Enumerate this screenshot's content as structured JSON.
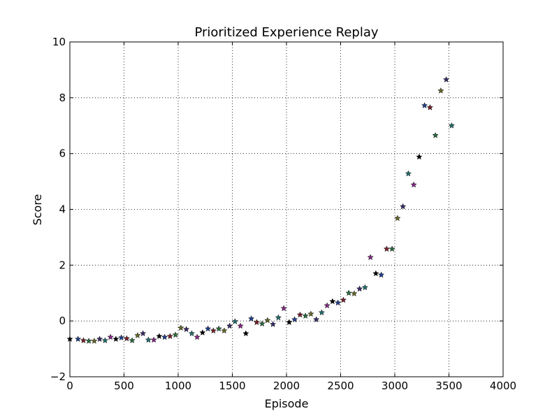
{
  "chart_data": {
    "type": "scatter",
    "title": "Prioritized Experience Replay",
    "xlabel": "Episode",
    "ylabel": "Score",
    "xlim": [
      0,
      4000
    ],
    "ylim": [
      -2,
      10
    ],
    "xticks": [
      0,
      500,
      1000,
      1500,
      2000,
      2500,
      3000,
      3500,
      4000
    ],
    "yticks": [
      -2,
      0,
      2,
      4,
      6,
      8,
      10
    ],
    "x_tick_labels": [
      "0",
      "500",
      "1000",
      "1500",
      "2000",
      "2500",
      "3000",
      "3500",
      "4000"
    ],
    "y_tick_labels": [
      "−2",
      "0",
      "2",
      "4",
      "6",
      "8",
      "10"
    ],
    "grid": true,
    "marker": "star",
    "marker_colors": [
      "#000000",
      "#1f3f8f",
      "#7a1f2a",
      "#2a6f3f",
      "#6a6a2a",
      "#3a2a6a",
      "#1f6f6f",
      "#8a2a8a"
    ],
    "points": [
      [
        0,
        -0.65
      ],
      [
        75,
        -0.65
      ],
      [
        125,
        -0.7
      ],
      [
        175,
        -0.72
      ],
      [
        225,
        -0.72
      ],
      [
        275,
        -0.65
      ],
      [
        325,
        -0.7
      ],
      [
        375,
        -0.58
      ],
      [
        425,
        -0.65
      ],
      [
        475,
        -0.6
      ],
      [
        525,
        -0.63
      ],
      [
        575,
        -0.7
      ],
      [
        625,
        -0.52
      ],
      [
        675,
        -0.45
      ],
      [
        725,
        -0.68
      ],
      [
        775,
        -0.68
      ],
      [
        825,
        -0.55
      ],
      [
        875,
        -0.58
      ],
      [
        925,
        -0.55
      ],
      [
        975,
        -0.5
      ],
      [
        1025,
        -0.25
      ],
      [
        1075,
        -0.3
      ],
      [
        1125,
        -0.45
      ],
      [
        1175,
        -0.58
      ],
      [
        1225,
        -0.42
      ],
      [
        1275,
        -0.28
      ],
      [
        1325,
        -0.35
      ],
      [
        1375,
        -0.28
      ],
      [
        1425,
        -0.35
      ],
      [
        1475,
        -0.18
      ],
      [
        1525,
        -0.02
      ],
      [
        1575,
        -0.18
      ],
      [
        1625,
        -0.45
      ],
      [
        1675,
        0.08
      ],
      [
        1725,
        -0.05
      ],
      [
        1775,
        -0.1
      ],
      [
        1825,
        0.02
      ],
      [
        1875,
        -0.12
      ],
      [
        1925,
        0.12
      ],
      [
        1975,
        0.45
      ],
      [
        2025,
        -0.05
      ],
      [
        2075,
        0.05
      ],
      [
        2125,
        0.22
      ],
      [
        2175,
        0.18
      ],
      [
        2225,
        0.25
      ],
      [
        2275,
        0.05
      ],
      [
        2325,
        0.3
      ],
      [
        2375,
        0.55
      ],
      [
        2425,
        0.7
      ],
      [
        2475,
        0.65
      ],
      [
        2525,
        0.75
      ],
      [
        2575,
        1.0
      ],
      [
        2625,
        0.98
      ],
      [
        2675,
        1.15
      ],
      [
        2725,
        1.2
      ],
      [
        2775,
        2.28
      ],
      [
        2825,
        1.7
      ],
      [
        2875,
        1.65
      ],
      [
        2925,
        2.58
      ],
      [
        2975,
        2.58
      ],
      [
        3025,
        3.68
      ],
      [
        3075,
        4.1
      ],
      [
        3125,
        5.28
      ],
      [
        3175,
        4.88
      ],
      [
        3225,
        5.88
      ],
      [
        3275,
        7.72
      ],
      [
        3325,
        7.65
      ],
      [
        3375,
        6.65
      ],
      [
        3425,
        8.25
      ],
      [
        3475,
        8.65
      ],
      [
        3525,
        7.0
      ]
    ]
  }
}
